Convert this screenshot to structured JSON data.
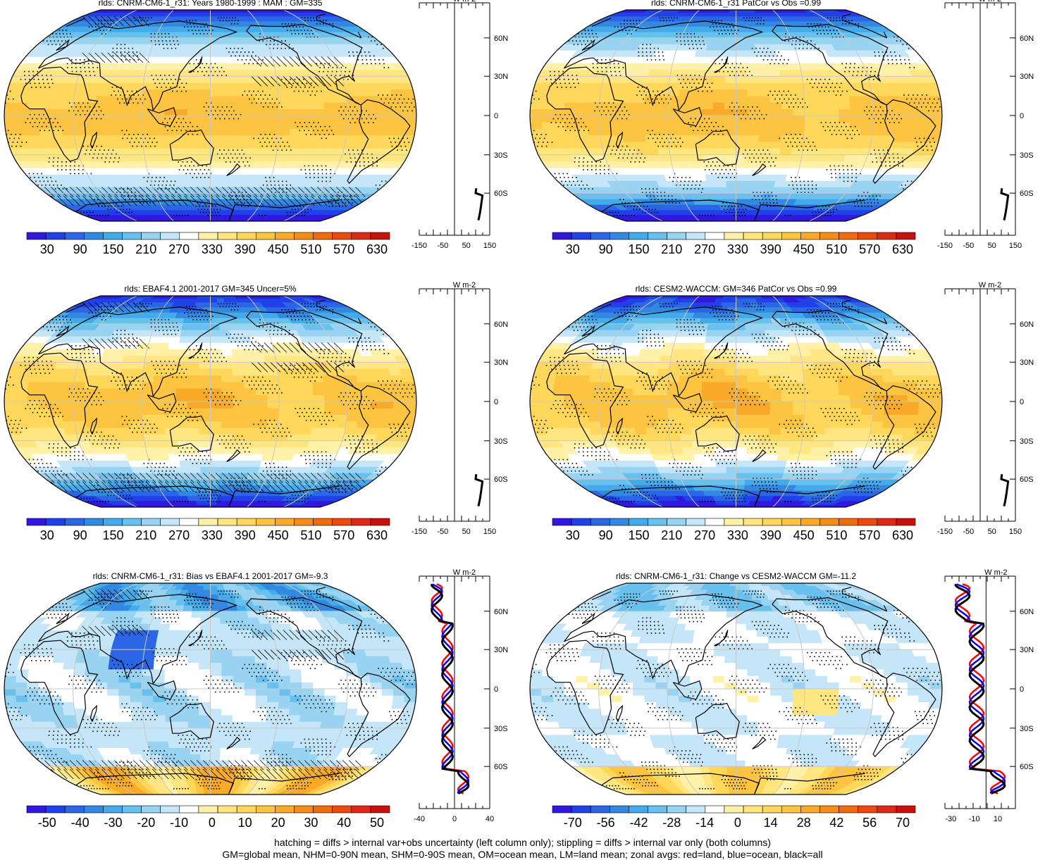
{
  "colors": {
    "map_palette": [
      "#3018e0",
      "#2040e8",
      "#2a66e6",
      "#3388e0",
      "#44aaea",
      "#68c0ee",
      "#98d4f2",
      "#c4e6f8",
      "#ffffff",
      "#fff2a8",
      "#ffe680",
      "#ffd75a",
      "#fcc440",
      "#f8aa28",
      "#f48c18",
      "#f06a10",
      "#ec4810",
      "#e02818",
      "#c81010"
    ],
    "land_line": "#000000",
    "zonal_all": "#000000",
    "zonal_land": "#ff0000",
    "zonal_ocean": "#0000ff"
  },
  "footer": {
    "line1": "hatching = diffs > internal var+obs uncertainty (left column only); stippling = diffs > internal var only (both columns)",
    "line2": "GM=global mean, NHM=0-90N mean, SHM=0-90S mean, OM=ocean mean, LM=land mean; zonal avgs: red=land, blue=ocean, black=all"
  },
  "chart_data": [
    {
      "type": "heatmap",
      "projection": "robinson",
      "title": "rlds: CNRM-CM6-1_r31: Years 1980-1999 : MAM : GM=335",
      "colorbar_labels": [
        "30",
        "90",
        "150",
        "210",
        "270",
        "330",
        "390",
        "450",
        "510",
        "570",
        "630"
      ],
      "colorbar_range": [
        0,
        660
      ],
      "lat_labels": [
        "60N",
        "30N",
        "0",
        "30S",
        "60S"
      ],
      "zonal_unit": "W m-2",
      "zonal_xticks": [
        "-150",
        "-50",
        "50",
        "150"
      ],
      "zonal_xlim": [
        -150,
        150
      ],
      "zonal_series": [
        "all"
      ],
      "hatching": true,
      "stippling": true
    },
    {
      "type": "heatmap",
      "projection": "robinson",
      "title": "rlds: CNRM-CM6-1_r31 PatCor vs Obs =0.99",
      "colorbar_labels": [
        "30",
        "90",
        "150",
        "210",
        "270",
        "330",
        "390",
        "450",
        "510",
        "570",
        "630"
      ],
      "colorbar_range": [
        0,
        660
      ],
      "lat_labels": [
        "60N",
        "30N",
        "0",
        "30S",
        "60S"
      ],
      "zonal_unit": "W m-2",
      "zonal_xticks": [
        "-150",
        "-50",
        "50",
        "150"
      ],
      "zonal_xlim": [
        -150,
        150
      ],
      "zonal_series": [
        "all"
      ],
      "hatching": false,
      "stippling": true
    },
    {
      "type": "heatmap",
      "projection": "robinson",
      "title": "rlds: EBAF4.1 2001-2017 GM=345 Uncer=5%",
      "colorbar_labels": [
        "30",
        "90",
        "150",
        "210",
        "270",
        "330",
        "390",
        "450",
        "510",
        "570",
        "630"
      ],
      "colorbar_range": [
        0,
        660
      ],
      "lat_labels": [
        "60N",
        "30N",
        "0",
        "30S",
        "60S"
      ],
      "zonal_unit": "W m-2",
      "zonal_xticks": [
        "-150",
        "-50",
        "50",
        "150"
      ],
      "zonal_xlim": [
        -150,
        150
      ],
      "zonal_series": [
        "all"
      ],
      "hatching": true,
      "stippling": true
    },
    {
      "type": "heatmap",
      "projection": "robinson",
      "title": "rlds: CESM2-WACCM: GM=346 PatCor vs Obs =0.99",
      "colorbar_labels": [
        "30",
        "90",
        "150",
        "210",
        "270",
        "330",
        "390",
        "450",
        "510",
        "570",
        "630"
      ],
      "colorbar_range": [
        0,
        660
      ],
      "lat_labels": [
        "60N",
        "30N",
        "0",
        "30S",
        "60S"
      ],
      "zonal_unit": "W m-2",
      "zonal_xticks": [
        "-150",
        "-50",
        "50",
        "150"
      ],
      "zonal_xlim": [
        -150,
        150
      ],
      "zonal_series": [
        "all"
      ],
      "hatching": false,
      "stippling": true
    },
    {
      "type": "heatmap",
      "projection": "robinson",
      "title": "rlds: CNRM-CM6-1_r31: Bias vs EBAF4.1 2001-2017 GM=-9.3",
      "colorbar_labels": [
        "-50",
        "-40",
        "-30",
        "-20",
        "-10",
        "0",
        "10",
        "20",
        "30",
        "40",
        "50"
      ],
      "colorbar_range": [
        -55,
        55
      ],
      "lat_labels": [
        "60N",
        "30N",
        "0",
        "30S",
        "60S"
      ],
      "zonal_unit": "W m-2",
      "zonal_xticks": [
        "-40",
        "0",
        "40"
      ],
      "zonal_xlim": [
        -40,
        40
      ],
      "zonal_series": [
        "land",
        "ocean",
        "all"
      ],
      "hatching": true,
      "stippling": true
    },
    {
      "type": "heatmap",
      "projection": "robinson",
      "title": "rlds: CNRM-CM6-1_r31: Change vs CESM2-WACCM GM=-11.2",
      "colorbar_labels": [
        "-70",
        "-56",
        "-42",
        "-28",
        "-14",
        "0",
        "14",
        "28",
        "42",
        "56",
        "70"
      ],
      "colorbar_range": [
        -77,
        77
      ],
      "lat_labels": [
        "60N",
        "30N",
        "0",
        "30S",
        "60S"
      ],
      "zonal_unit": "W m-2",
      "zonal_xticks": [
        "-30",
        "-10",
        "10"
      ],
      "zonal_xlim": [
        -35,
        25
      ],
      "zonal_series": [
        "land",
        "ocean",
        "all"
      ],
      "hatching": false,
      "stippling": true
    }
  ]
}
